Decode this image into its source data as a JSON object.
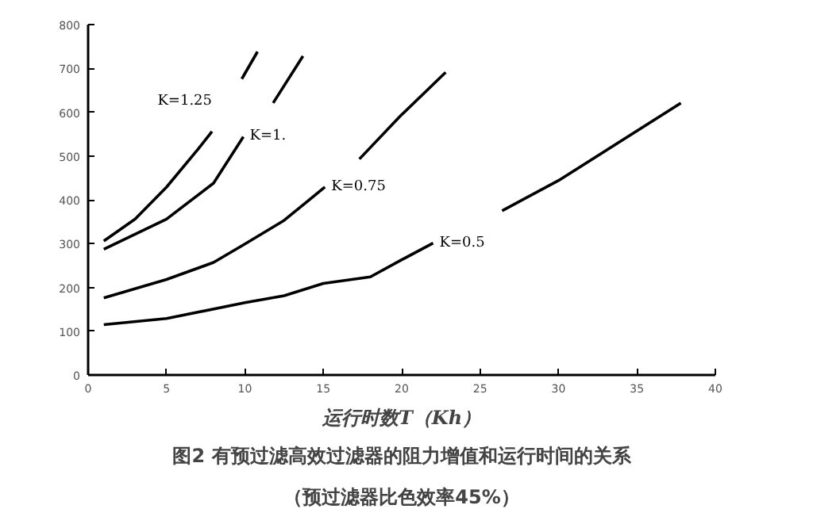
{
  "chart_data": {
    "type": "line",
    "title": "图2 有预过滤高效过滤器的阻力增值和运行时间的关系",
    "subtitle": "（预过滤器比色效率45%）",
    "xlabel": "运行时数T（Kh）",
    "xlim": [
      0,
      40
    ],
    "ylim": [
      0,
      800
    ],
    "xticks": [
      0,
      5,
      10,
      15,
      20,
      25,
      30,
      35,
      40
    ],
    "yticks": [
      0,
      100,
      200,
      300,
      400,
      500,
      600,
      700,
      800
    ],
    "grid": false,
    "marker": "none",
    "line_style": "solid",
    "series": [
      {
        "name": "K=1.25",
        "color": "#000000",
        "x": [
          1,
          3,
          5,
          7,
          7.9,
          8.9,
          9.8,
          10.8
        ],
        "values": [
          306,
          356,
          429,
          515,
          556,
          null,
          676,
          738
        ]
      },
      {
        "name": "K=1.",
        "color": "#000000",
        "x": [
          1,
          5,
          8,
          9.9,
          10.9,
          11.8,
          13.7
        ],
        "values": [
          287,
          356,
          438,
          544,
          null,
          621,
          728
        ]
      },
      {
        "name": "K=0.75",
        "color": "#000000",
        "x": [
          1,
          5,
          8,
          10,
          12.5,
          15.1,
          16.2,
          17.3,
          19.9,
          22.8
        ],
        "values": [
          176,
          218,
          257,
          299,
          353,
          429,
          null,
          493,
          591,
          691
        ]
      },
      {
        "name": "K=0.5",
        "color": "#000000",
        "x": [
          1,
          5,
          10,
          12.5,
          15,
          18,
          20,
          22,
          24,
          26.4,
          30,
          37.8
        ],
        "values": [
          115,
          129,
          165,
          181,
          209,
          224,
          263,
          301,
          null,
          375,
          444,
          621
        ]
      }
    ]
  }
}
